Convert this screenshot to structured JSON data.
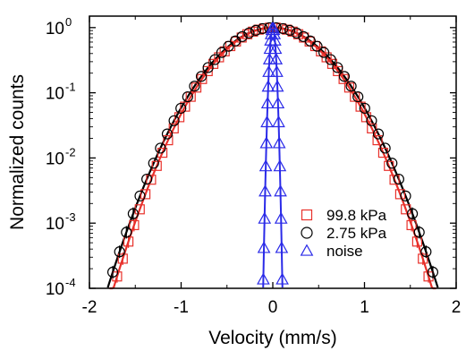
{
  "chart_data": {
    "type": "scatter",
    "xlabel": "Velocity (mm/s)",
    "ylabel": "Normalized counts",
    "xlim": [
      -2,
      2
    ],
    "ylim": [
      0.0001,
      1.5
    ],
    "yscale": "log",
    "x_ticks": [
      -2,
      -1,
      0,
      1,
      2
    ],
    "y_ticks": [
      {
        "value": 0.0001,
        "base": "10",
        "exp": "-4"
      },
      {
        "value": 0.001,
        "base": "10",
        "exp": "-3"
      },
      {
        "value": 0.01,
        "base": "10",
        "exp": "-2"
      },
      {
        "value": 0.1,
        "base": "10",
        "exp": "-1"
      },
      {
        "value": 1,
        "base": "10",
        "exp": "0"
      }
    ],
    "legend_position": "bottom-right",
    "series": [
      {
        "name": "99.8 kPa",
        "marker": "square",
        "color": "#e8302a",
        "sigma": 0.405,
        "x_range": [
          -1.76,
          1.76
        ],
        "n_points": 58,
        "fit": {
          "color": "#e8302a",
          "x_range": [
            -1.78,
            1.78
          ]
        }
      },
      {
        "name": "2.75 kPa",
        "marker": "circle",
        "color": "#000000",
        "sigma": 0.42,
        "x_range": [
          -1.82,
          1.82
        ],
        "n_points": 50,
        "fit": {
          "color": "#000000",
          "x_range": [
            -1.8,
            1.8
          ]
        }
      },
      {
        "name": "noise",
        "marker": "triangle",
        "color": "#2a2ae8",
        "sigma": 0.0245,
        "x_range": [
          -0.11,
          0.11
        ],
        "n_points": 34,
        "fit": {
          "color": "#2a2ae8",
          "x_range": [
            -0.105,
            0.105
          ]
        }
      }
    ]
  }
}
